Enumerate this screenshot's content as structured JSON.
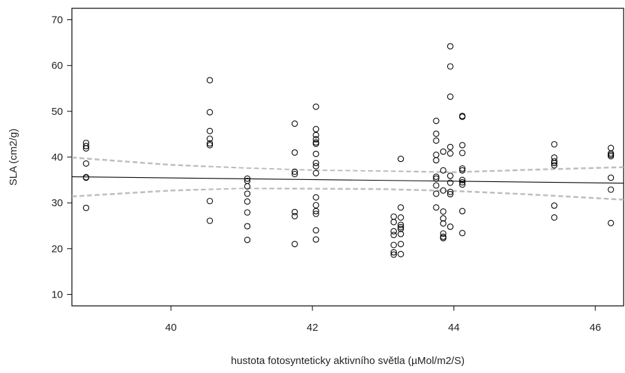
{
  "chart_data": {
    "type": "scatter",
    "title": "",
    "xlabel": "hustota fotosynteticky aktivního světla (µMol/m2/S)",
    "ylabel": "SLA (cm2/g)",
    "xlim": [
      38.6,
      46.4
    ],
    "ylim": [
      7.5,
      72.5
    ],
    "xticks": [
      40,
      42,
      44,
      46
    ],
    "yticks": [
      10,
      20,
      30,
      40,
      50,
      60,
      70
    ],
    "grid": false,
    "points": [
      [
        38.8,
        43.1
      ],
      [
        38.8,
        42.4
      ],
      [
        38.8,
        41.9
      ],
      [
        38.8,
        38.6
      ],
      [
        38.8,
        35.6
      ],
      [
        38.8,
        35.5
      ],
      [
        38.8,
        28.9
      ],
      [
        40.55,
        56.8
      ],
      [
        40.55,
        49.8
      ],
      [
        40.55,
        45.7
      ],
      [
        40.55,
        44.0
      ],
      [
        40.55,
        43.0
      ],
      [
        40.55,
        42.6
      ],
      [
        40.55,
        30.4
      ],
      [
        40.55,
        26.1
      ],
      [
        41.08,
        35.3
      ],
      [
        41.08,
        34.8
      ],
      [
        41.08,
        33.6
      ],
      [
        41.08,
        32.0
      ],
      [
        41.08,
        30.3
      ],
      [
        41.08,
        27.9
      ],
      [
        41.08,
        24.9
      ],
      [
        41.08,
        21.9
      ],
      [
        41.75,
        47.3
      ],
      [
        41.75,
        41.0
      ],
      [
        41.75,
        36.8
      ],
      [
        41.75,
        36.3
      ],
      [
        41.75,
        28.0
      ],
      [
        41.75,
        27.1
      ],
      [
        41.75,
        21.0
      ],
      [
        42.05,
        51.0
      ],
      [
        42.05,
        46.1
      ],
      [
        42.05,
        44.8
      ],
      [
        42.05,
        43.9
      ],
      [
        42.05,
        43.2
      ],
      [
        42.05,
        42.9
      ],
      [
        42.05,
        40.7
      ],
      [
        42.05,
        38.7
      ],
      [
        42.05,
        38.0
      ],
      [
        42.05,
        36.5
      ],
      [
        42.05,
        31.2
      ],
      [
        42.05,
        29.5
      ],
      [
        42.05,
        28.2
      ],
      [
        42.05,
        27.6
      ],
      [
        42.05,
        24.0
      ],
      [
        42.05,
        22.0
      ],
      [
        43.15,
        27.0
      ],
      [
        43.15,
        25.8
      ],
      [
        43.15,
        23.8
      ],
      [
        43.15,
        23.0
      ],
      [
        43.15,
        20.8
      ],
      [
        43.15,
        19.2
      ],
      [
        43.15,
        18.7
      ],
      [
        43.25,
        39.6
      ],
      [
        43.25,
        29.0
      ],
      [
        43.25,
        26.8
      ],
      [
        43.25,
        25.2
      ],
      [
        43.25,
        24.7
      ],
      [
        43.25,
        24.3
      ],
      [
        43.25,
        23.2
      ],
      [
        43.25,
        21.0
      ],
      [
        43.25,
        18.8
      ],
      [
        43.75,
        47.9
      ],
      [
        43.75,
        45.1
      ],
      [
        43.75,
        43.6
      ],
      [
        43.75,
        40.5
      ],
      [
        43.75,
        39.3
      ],
      [
        43.75,
        35.7
      ],
      [
        43.75,
        35.3
      ],
      [
        43.75,
        33.8
      ],
      [
        43.75,
        32.0
      ],
      [
        43.75,
        29.0
      ],
      [
        43.85,
        41.2
      ],
      [
        43.85,
        37.1
      ],
      [
        43.85,
        32.7
      ],
      [
        43.85,
        28.1
      ],
      [
        43.85,
        26.6
      ],
      [
        43.85,
        25.5
      ],
      [
        43.85,
        23.3
      ],
      [
        43.85,
        22.6
      ],
      [
        43.85,
        22.3
      ],
      [
        43.95,
        64.2
      ],
      [
        43.95,
        59.8
      ],
      [
        43.95,
        53.2
      ],
      [
        43.95,
        42.2
      ],
      [
        43.95,
        40.8
      ],
      [
        43.95,
        35.9
      ],
      [
        43.95,
        34.4
      ],
      [
        43.95,
        32.4
      ],
      [
        43.95,
        31.9
      ],
      [
        43.95,
        24.8
      ],
      [
        44.12,
        49.0
      ],
      [
        44.12,
        48.8
      ],
      [
        44.12,
        42.6
      ],
      [
        44.12,
        40.9
      ],
      [
        44.12,
        37.5
      ],
      [
        44.12,
        37.1
      ],
      [
        44.12,
        35.0
      ],
      [
        44.12,
        34.5
      ],
      [
        44.12,
        34.0
      ],
      [
        44.12,
        28.2
      ],
      [
        44.12,
        23.4
      ],
      [
        45.42,
        42.8
      ],
      [
        45.42,
        39.9
      ],
      [
        45.42,
        39.1
      ],
      [
        45.42,
        38.7
      ],
      [
        45.42,
        38.2
      ],
      [
        45.42,
        29.4
      ],
      [
        45.42,
        26.8
      ],
      [
        46.22,
        42.0
      ],
      [
        46.22,
        40.8
      ],
      [
        46.22,
        40.5
      ],
      [
        46.22,
        40.2
      ],
      [
        46.22,
        35.5
      ],
      [
        46.22,
        32.9
      ],
      [
        46.22,
        25.6
      ]
    ],
    "fit_line": {
      "x": [
        38.6,
        46.4
      ],
      "y": [
        35.7,
        34.3
      ],
      "color": "#000000"
    },
    "confidence_bands": [
      {
        "x": [
          38.6,
          40.0,
          41.0,
          42.0,
          43.0,
          44.0,
          45.0,
          46.4
        ],
        "y": [
          40.0,
          38.4,
          37.7,
          37.2,
          37.0,
          36.8,
          37.3,
          37.9
        ]
      },
      {
        "x": [
          38.6,
          40.0,
          41.0,
          42.0,
          43.0,
          44.0,
          45.0,
          46.4
        ],
        "y": [
          31.3,
          32.6,
          33.1,
          33.0,
          32.9,
          32.5,
          31.8,
          30.6
        ]
      },
      {
        "x": [
          38.6,
          40.0,
          41.0,
          42.0,
          43.0,
          44.0,
          45.0,
          46.4
        ],
        "y": [
          39.8,
          38.2,
          37.6,
          37.1,
          36.9,
          36.6,
          37.1,
          37.7
        ]
      },
      {
        "x": [
          38.6,
          40.0,
          41.0,
          42.0,
          43.0,
          44.0,
          45.0,
          46.4
        ],
        "y": [
          31.5,
          32.8,
          33.2,
          33.2,
          33.1,
          32.7,
          32.0,
          30.8
        ]
      }
    ],
    "band_color": "#b8b8b8"
  }
}
